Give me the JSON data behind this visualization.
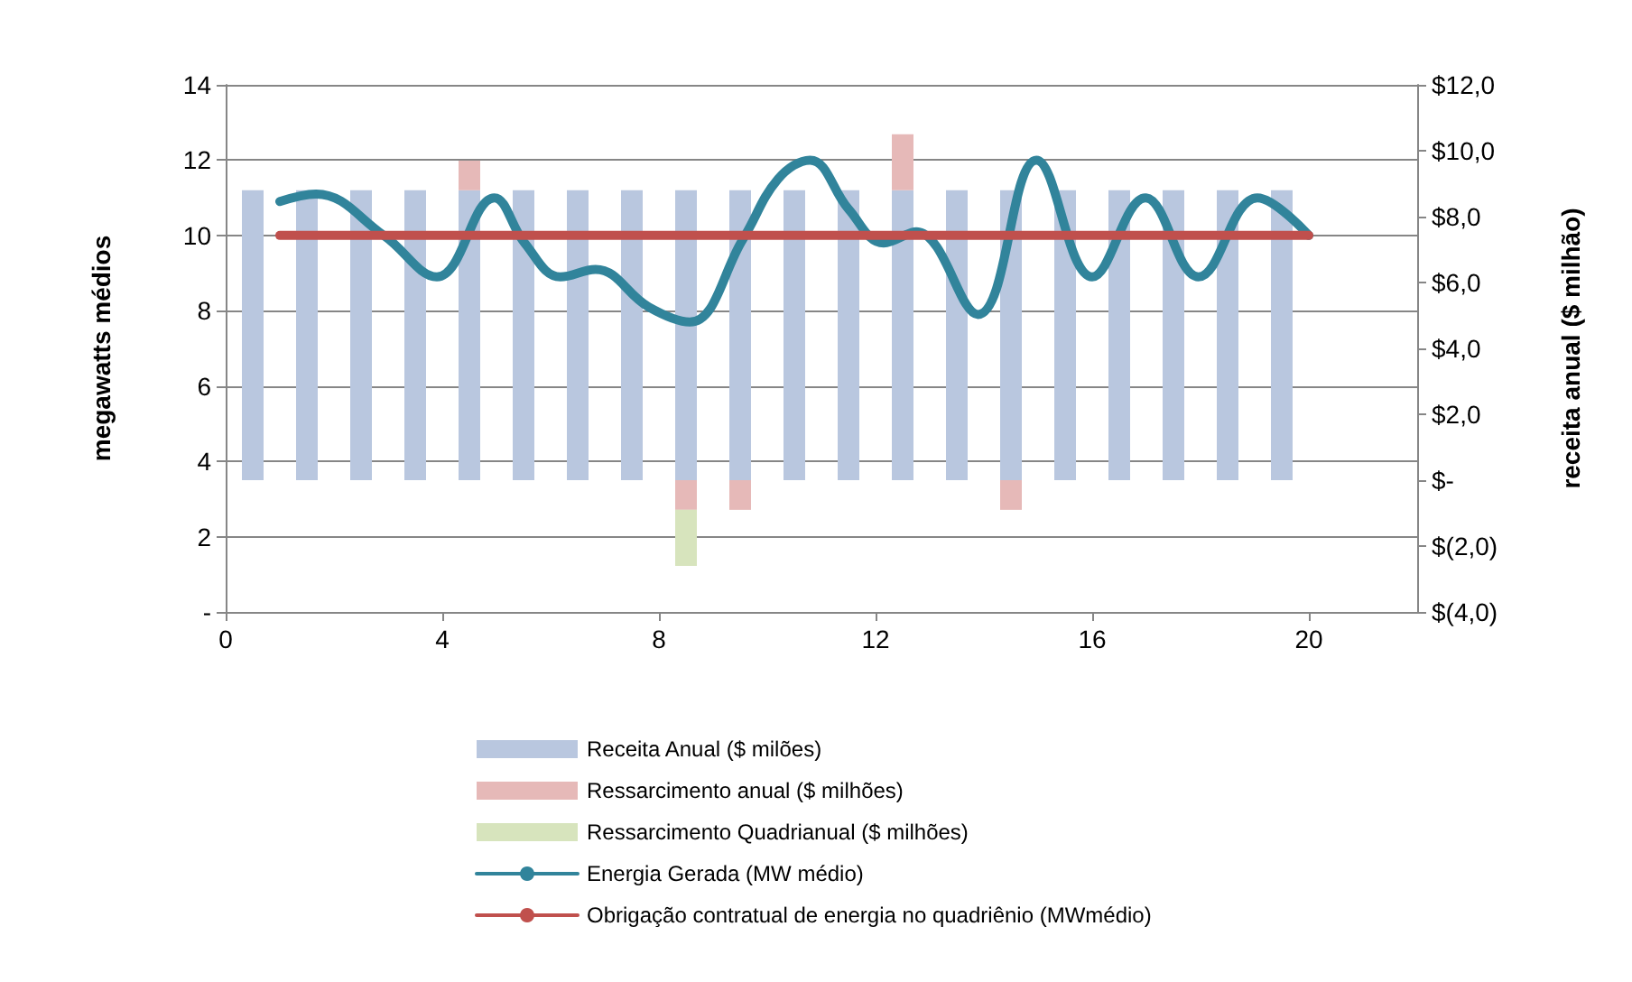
{
  "chart_data": {
    "type": "bar",
    "stacked": true,
    "xlim": [
      0,
      22
    ],
    "xticks": [
      0,
      4,
      8,
      12,
      16,
      20
    ],
    "ylim": [
      0,
      14
    ],
    "yticks": [
      {
        "value": 0,
        "label": "-"
      },
      2,
      4,
      6,
      8,
      10,
      12,
      14
    ],
    "y2lim": [
      -4,
      12
    ],
    "y2ticks": [
      {
        "value": -4,
        "label": "$(4,0)"
      },
      {
        "value": -2,
        "label": "$(2,0)"
      },
      {
        "value": 0,
        "label": "$-"
      },
      {
        "value": 2,
        "label": "$2,0"
      },
      {
        "value": 4,
        "label": "$4,0"
      },
      {
        "value": 6,
        "label": "$6,0"
      },
      {
        "value": 8,
        "label": "$8,0"
      },
      {
        "value": 10,
        "label": "$10,0"
      },
      {
        "value": 12,
        "label": "$12,0"
      }
    ],
    "ylabel": "megawatts médios",
    "y2label": "receita anual ($ milhão)",
    "grid": "y",
    "legend": "bottom",
    "x": [
      0.5,
      1.5,
      2.5,
      3.5,
      4.5,
      5.5,
      6.5,
      7.5,
      8.5,
      9.5,
      10.5,
      11.5,
      12.5,
      13.5,
      14.5,
      15.5,
      16.5,
      17.5,
      18.5,
      19.5
    ],
    "series": [
      {
        "name": "Receita Anual ($ milões)",
        "color": "#b9c7df",
        "axis": "y2",
        "values": [
          8.8,
          8.8,
          8.8,
          8.8,
          8.8,
          8.8,
          8.8,
          8.8,
          8.8,
          8.8,
          8.8,
          8.8,
          8.8,
          8.8,
          8.8,
          8.8,
          8.8,
          8.8,
          8.8,
          8.8
        ]
      },
      {
        "name": "Ressarcimento anual ($ milhões)",
        "color": "#e6b9b8",
        "axis": "y2",
        "values": [
          null,
          null,
          null,
          null,
          0.9,
          null,
          null,
          null,
          -0.9,
          -0.9,
          null,
          null,
          1.7,
          null,
          -0.9,
          null,
          null,
          null,
          null,
          null
        ]
      },
      {
        "name": "Ressarcimento Quadrianual ($ milhões)",
        "color": "#d7e4bd",
        "axis": "y2",
        "values": [
          null,
          null,
          null,
          null,
          null,
          null,
          null,
          null,
          -1.7,
          null,
          null,
          null,
          null,
          null,
          null,
          null,
          null,
          null,
          null,
          null
        ]
      },
      {
        "name": "Energia Gerada (MW médio)",
        "type": "line",
        "color": "#31849b",
        "axis": "y",
        "x": [
          1,
          1.67,
          2.92,
          3.9,
          4.96,
          5.52,
          6.18,
          6.83,
          7.81,
          8.57,
          9.55,
          10.2,
          10.79,
          11.5,
          12.15,
          12.75,
          13.89,
          14.97,
          16,
          16.98,
          17.96,
          19.05,
          20
        ],
        "values": [
          10.9,
          11.1,
          10,
          8.9,
          11,
          9.8,
          8.9,
          9.1,
          8.1,
          7.7,
          9.9,
          11.5,
          12,
          10.7,
          9.8,
          10.1,
          7.9,
          12,
          8.9,
          11,
          8.9,
          11,
          10
        ]
      },
      {
        "name": "Obrigação contratual de energia no quadriênio (MWmédio)",
        "type": "line",
        "color": "#c0504d",
        "axis": "y",
        "x": [
          1,
          20
        ],
        "values": [
          10,
          10
        ]
      }
    ]
  }
}
